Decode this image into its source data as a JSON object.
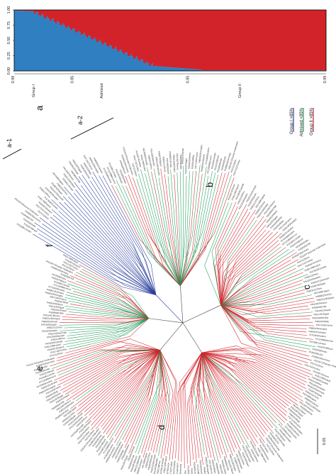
{
  "structure_plot": {
    "y_ticks": [
      "0.99",
      "0.85",
      "0.85",
      "0.99"
    ],
    "y_tick_values": [
      0.99,
      0.85,
      0.85,
      0.99
    ],
    "y_tick_positions": [
      0.0,
      0.19,
      0.56,
      1.0
    ],
    "x_ticks": [
      "1.00",
      "0.75",
      "0.50",
      "0.25",
      "0.00"
    ],
    "group_labels": {
      "group1": "Group I",
      "admixed": "Admixed",
      "group2": "Group II"
    }
  },
  "clade_labels": {
    "a": "a",
    "a1": "a-1",
    "a2": "a-2",
    "b": "b",
    "c": "c",
    "d": "d",
    "e": "e",
    "f": "f"
  },
  "legend": {
    "items": [
      {
        "label": "Group I   >85%",
        "color": "#2b3f9c"
      },
      {
        "label": "Admixed   <85%",
        "color": "#1f9a5a"
      },
      {
        "label": "Group II   >85%",
        "color": "#d2232a"
      }
    ]
  },
  "scale_bar": {
    "label": "0.05"
  },
  "colors": {
    "group1": "#2b3f9c",
    "admixed": "#1f9a5a",
    "group2": "#d2232a",
    "structure_blue": "#2f7fc1",
    "structure_red": "#d2232a"
  },
  "leaves": [
    "PI216851Jordan",
    "PI422576Brazil",
    "PI234582India",
    "PI294593USA",
    "PI299023Germany",
    "PI313471Russian Federation",
    "PI372123Iran",
    "PI417152Turkey",
    "PI432874Greece",
    "PI451789Poland",
    "PI476920Canada",
    "PI502134Peru",
    "PI512643Sweden",
    "PI532101Denmark",
    "PI548760Spain",
    "PI563211China",
    "PI574890Japan",
    "PI589021Kenya",
    "PI602113Ethiopia",
    "PI613407Mexico",
    "PI628904Chile",
    "PI634512Nepal",
    "PI641287Egypt",
    "PI655430Serbia",
    "PI662019Italy",
    "PI671342France",
    "PI683105Hungary",
    "PI690231Ukraine",
    "PI703456Austria",
    "PI712098Morocco"
  ]
}
